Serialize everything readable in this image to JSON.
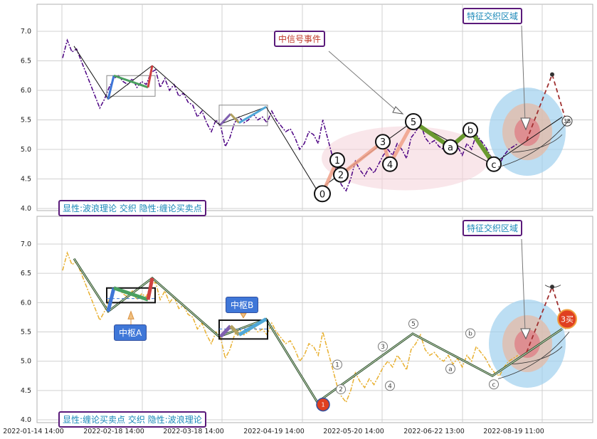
{
  "chart_data": [
    {
      "type": "line",
      "panel": "top",
      "legend": "显性:波浪理论 交织 隐性:缠论买卖点",
      "annotations": {
        "event": "中信号事件",
        "region": "特征交织区域",
        "extra": "3B"
      },
      "ylim": [
        3.95,
        7.45
      ],
      "yticks": [
        4.0,
        4.5,
        5.0,
        5.5,
        6.0,
        6.5,
        7.0
      ],
      "price": [
        6.55,
        6.85,
        6.65,
        6.7,
        6.5,
        6.3,
        6.1,
        5.9,
        5.7,
        5.85,
        6.05,
        6.2,
        6.25,
        6.15,
        6.1,
        6.2,
        6.05,
        6.15,
        6.1,
        6.3,
        6.35,
        6.05,
        6.2,
        6.0,
        6.1,
        5.9,
        5.95,
        5.8,
        5.75,
        5.55,
        5.65,
        5.45,
        5.3,
        5.5,
        5.4,
        5.05,
        5.2,
        5.45,
        5.55,
        5.45,
        5.5,
        5.6,
        5.5,
        5.55,
        5.45,
        5.65,
        5.5,
        5.4,
        5.3,
        5.35,
        5.2,
        5.0,
        5.1,
        5.3,
        5.25,
        5.1,
        5.5,
        5.2,
        4.9,
        4.6,
        4.4,
        4.3,
        4.5,
        4.8,
        4.65,
        4.55,
        4.7,
        4.6,
        4.75,
        4.9,
        5.0,
        4.9,
        5.1,
        5.0,
        4.85,
        5.2,
        5.3,
        5.45,
        5.2,
        5.1,
        5.15,
        5.05,
        5.0,
        5.1,
        4.95,
        5.05,
        4.9,
        5.1,
        5.0,
        5.25,
        5.15,
        5.05,
        4.9,
        4.8,
        4.75,
        4.9,
        5.0,
        5.05,
        5.1
      ],
      "wave_points": [
        {
          "label": "0",
          "v": 4.25
        },
        {
          "label": "1",
          "v": 4.82
        },
        {
          "label": "2",
          "v": 4.57
        },
        {
          "label": "3",
          "v": 5.13
        },
        {
          "label": "4",
          "v": 4.75
        },
        {
          "label": "5",
          "v": 5.47
        },
        {
          "label": "a",
          "v": 5.04
        },
        {
          "label": "b",
          "v": 5.33
        },
        {
          "label": "c",
          "v": 4.75
        }
      ]
    },
    {
      "type": "line",
      "panel": "bottom",
      "legend": "显性:缠论买卖点 交织 隐性:波浪理论",
      "annotations": {
        "zhongshu_a": "中枢A",
        "zhongshu_b": "中枢B",
        "region": "特征交织区域",
        "buy1": "1",
        "buy3": "3买"
      },
      "ylim": [
        3.95,
        7.45
      ],
      "yticks": [
        4.0,
        4.5,
        5.0,
        5.5,
        6.0,
        6.5,
        7.0
      ],
      "wave_points": [
        {
          "label": "1",
          "v": 4.82
        },
        {
          "label": "2",
          "v": 4.57
        },
        {
          "label": "3",
          "v": 5.13
        },
        {
          "label": "4",
          "v": 4.75
        },
        {
          "label": "5",
          "v": 5.47
        },
        {
          "label": "a",
          "v": 5.04
        },
        {
          "label": "b",
          "v": 5.33
        },
        {
          "label": "c",
          "v": 4.75
        }
      ]
    }
  ],
  "x_ticks": [
    "2022-01-14 14:00",
    "2022-02-18 14:00",
    "2022-03-18 14:00",
    "2022-04-19 14:00",
    "2022-05-20 14:00",
    "2022-06-22 13:00",
    "2022-08-19 11:00"
  ],
  "colors": {
    "top_price": "#4b0082",
    "bottom_price": "#e8b030",
    "zone_blue": "#9fd0ee",
    "zone_pink": "#f5d6dc"
  }
}
